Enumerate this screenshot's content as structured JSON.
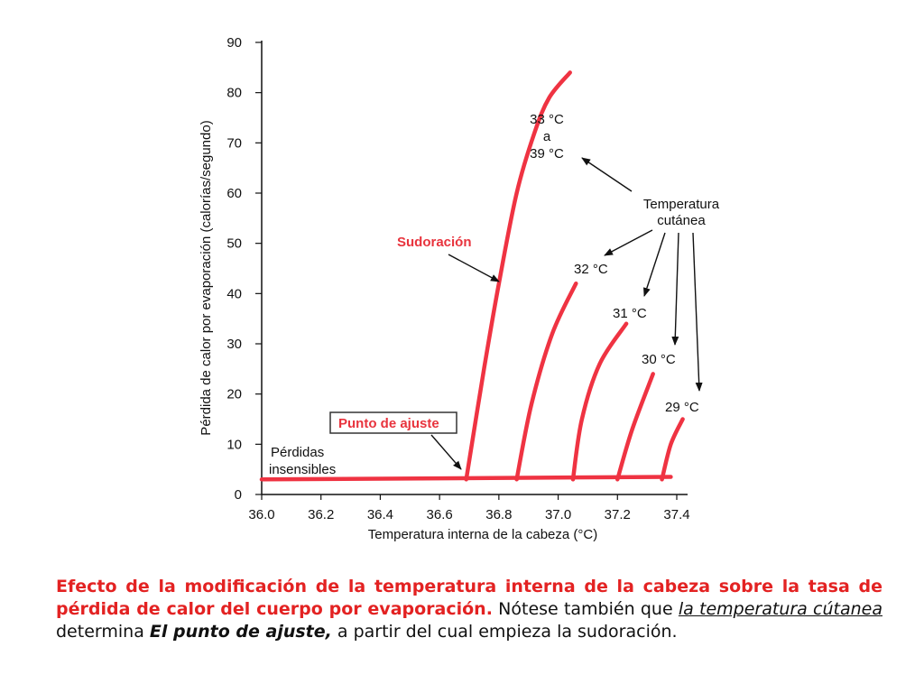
{
  "colors": {
    "curve": "#ef3342",
    "axis": "#111111",
    "caption_red": "#e32222"
  },
  "chart_data": {
    "type": "line",
    "title": "",
    "xlabel": "Temperatura interna de la cabeza (°C)",
    "ylabel": "Pérdida de calor por evaporación (calorías/segundo)",
    "xlim": [
      36.0,
      37.4
    ],
    "ylim": [
      0,
      90
    ],
    "x_ticks": [
      "36.0",
      "36.2",
      "36.4",
      "36.6",
      "36.8",
      "37.0",
      "37.2",
      "37.4"
    ],
    "y_ticks": [
      "0",
      "10",
      "20",
      "30",
      "40",
      "50",
      "60",
      "70",
      "80",
      "90"
    ],
    "series": [
      {
        "name": "Pérdidas insensibles",
        "x": [
          36.0,
          37.38
        ],
        "y": [
          3,
          3.5
        ]
      },
      {
        "name": "33 °C a 39 °C",
        "x": [
          36.69,
          36.75,
          36.8,
          36.86,
          36.92,
          36.97,
          37.04
        ],
        "y": [
          3,
          25,
          42,
          60,
          72,
          79,
          84
        ]
      },
      {
        "name": "32 °C",
        "x": [
          36.86,
          36.91,
          36.98,
          37.06
        ],
        "y": [
          3,
          18,
          32,
          42
        ]
      },
      {
        "name": "31 °C",
        "x": [
          37.05,
          37.08,
          37.14,
          37.23
        ],
        "y": [
          3,
          15,
          26,
          34
        ]
      },
      {
        "name": "30 °C",
        "x": [
          37.2,
          37.25,
          37.32
        ],
        "y": [
          3,
          13,
          24
        ]
      },
      {
        "name": "29 °C",
        "x": [
          37.35,
          37.38,
          37.42
        ],
        "y": [
          3,
          10,
          15
        ]
      }
    ],
    "annotations": {
      "curve_33_39": [
        "33 °C",
        "a",
        "39 °C"
      ],
      "temp_cutanea": [
        "Temperatura",
        "cutánea"
      ],
      "sudoracion": "Sudoración",
      "c32": "32 °C",
      "c31": "31 °C",
      "c30": "30 °C",
      "c29": "29 °C",
      "punto_ajuste": "Punto de ajuste",
      "perdidas": [
        "Pérdidas",
        "insensibles"
      ]
    }
  },
  "caption": {
    "bold_red": "Efecto de la modificación de la temperatura interna de la cabeza  sobre la tasa de pérdida de calor del cuerpo por evaporación.",
    "part1": "  Nótese también que ",
    "underlined": "la temperatura cútanea",
    "part2": " determina ",
    "bold_italic": "El punto de ajuste,",
    "part3": " a partir del cual empieza la sudoración."
  }
}
